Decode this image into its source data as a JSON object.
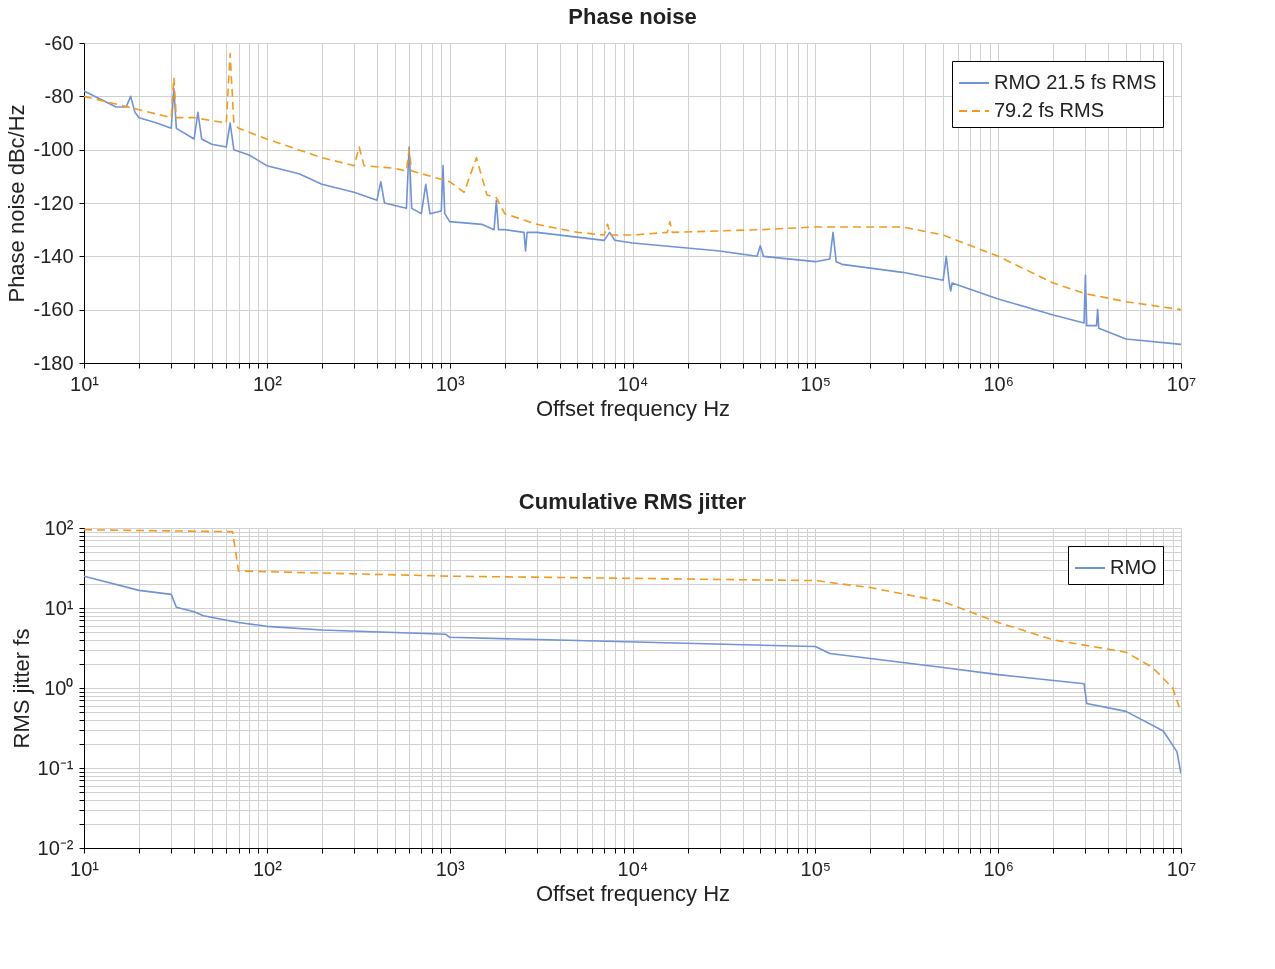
{
  "chart_data": [
    {
      "type": "line",
      "title": "Phase noise",
      "xlabel": "Offset frequency Hz",
      "ylabel": "Phase noise dBc/Hz",
      "log": "x",
      "grid": true,
      "legend": "top right",
      "marker": "none",
      "xlim": [
        10,
        10000000
      ],
      "ylim": [
        -180,
        -60
      ],
      "xticks": [
        {
          "value": 10,
          "label": "10¹"
        },
        {
          "value": 100,
          "label": "10²"
        },
        {
          "value": 1000,
          "label": "10³"
        },
        {
          "value": 10000,
          "label": "10⁴"
        },
        {
          "value": 100000,
          "label": "10⁵"
        },
        {
          "value": 1000000,
          "label": "10⁶"
        },
        {
          "value": 10000000,
          "label": "10⁷"
        }
      ],
      "yticks": [
        -180,
        -160,
        -140,
        -120,
        -100,
        -80,
        -60
      ],
      "series": [
        {
          "name": "RMO 21.5 fs RMS",
          "color": "#7092d6",
          "line_style": "solid",
          "x": [
            10,
            15,
            17,
            18,
            19,
            20,
            25,
            30,
            31,
            32,
            40,
            42,
            44,
            50,
            60,
            63,
            66,
            80,
            100,
            150,
            200,
            300,
            400,
            420,
            440,
            580,
            600,
            620,
            700,
            740,
            780,
            900,
            920,
            940,
            1000,
            1500,
            1750,
            1800,
            1850,
            2000,
            2550,
            2600,
            2650,
            3000,
            7000,
            7500,
            8000,
            10000,
            30000,
            48000,
            50000,
            52000,
            100000,
            120000,
            125000,
            130000,
            140000,
            300000,
            500000,
            520000,
            540000,
            550000,
            560000,
            1000000,
            2000000,
            2950000,
            3000000,
            3050000,
            3450000,
            3500000,
            3550000,
            5000000,
            10000000
          ],
          "values": [
            -78,
            -84,
            -84,
            -80,
            -86,
            -88,
            -90,
            -92,
            -77,
            -92,
            -96,
            -86,
            -96,
            -98,
            -99,
            -90,
            -100,
            -102,
            -106,
            -109,
            -113,
            -116,
            -119,
            -112,
            -120,
            -122,
            -99,
            -122,
            -124,
            -113,
            -124,
            -123,
            -106,
            -124,
            -127,
            -128,
            -130,
            -119,
            -130,
            -130,
            -131,
            -138,
            -131,
            -131,
            -134,
            -131,
            -134,
            -135,
            -138,
            -140,
            -136,
            -140,
            -142,
            -141,
            -131,
            -142,
            -143,
            -146,
            -149,
            -140,
            -150,
            -153,
            -150,
            -156,
            -162,
            -165,
            -147,
            -166,
            -166,
            -160,
            -167,
            -171,
            -173
          ]
        },
        {
          "name": "79.2 fs RMS",
          "color": "#f39a1e",
          "line_style": "dashed",
          "x": [
            10,
            20,
            30,
            31,
            32,
            40,
            60,
            63,
            66,
            70,
            100,
            200,
            300,
            320,
            340,
            500,
            580,
            600,
            620,
            700,
            1000,
            1200,
            1400,
            1600,
            1800,
            2000,
            3000,
            5000,
            7000,
            7300,
            7600,
            10000,
            15500,
            16000,
            16500,
            50000,
            100000,
            200000,
            300000,
            500000,
            1000000,
            2000000,
            3000000,
            5000000,
            10000000
          ],
          "values": [
            -80,
            -85,
            -88,
            -73,
            -88,
            -88,
            -90,
            -64,
            -90,
            -92,
            -96,
            -103,
            -106,
            -99,
            -106,
            -107,
            -108,
            -100,
            -108,
            -109,
            -112,
            -116,
            -103,
            -117,
            -118,
            -124,
            -128,
            -131,
            -132,
            -128,
            -132,
            -132,
            -131,
            -127,
            -131,
            -130,
            -129,
            -129,
            -129,
            -132,
            -140,
            -150,
            -154,
            -157,
            -160
          ]
        }
      ]
    },
    {
      "type": "line",
      "title": "Cumulative RMS jitter",
      "xlabel": "Offset frequency Hz",
      "ylabel": "RMS jitter fs",
      "log": "xy",
      "grid": true,
      "legend": "top right",
      "marker": "none",
      "xlim": [
        10,
        10000000
      ],
      "ylim": [
        0.01,
        100
      ],
      "xticks": [
        {
          "value": 10,
          "label": "10¹"
        },
        {
          "value": 100,
          "label": "10²"
        },
        {
          "value": 1000,
          "label": "10³"
        },
        {
          "value": 10000,
          "label": "10⁴"
        },
        {
          "value": 100000,
          "label": "10⁵"
        },
        {
          "value": 1000000,
          "label": "10⁶"
        },
        {
          "value": 10000000,
          "label": "10⁷"
        }
      ],
      "yticks": [
        {
          "value": 0.01,
          "label": "10⁻²"
        },
        {
          "value": 0.1,
          "label": "10⁻¹"
        },
        {
          "value": 1,
          "label": "10⁰"
        },
        {
          "value": 10,
          "label": "10¹"
        },
        {
          "value": 100,
          "label": "10²"
        }
      ],
      "series": [
        {
          "name": "RMO",
          "color": "#7092d6",
          "line_style": "solid",
          "x": [
            10,
            20,
            30,
            32,
            40,
            45,
            70,
            100,
            200,
            950,
            1000,
            100000,
            120000,
            500000,
            1000000,
            2950000,
            3050000,
            5000000,
            8000000,
            9500000,
            10000000
          ],
          "values": [
            25,
            16.6,
            14.8,
            10.2,
            9,
            8,
            6.6,
            5.9,
            5.3,
            4.7,
            4.3,
            3.3,
            2.7,
            1.8,
            1.47,
            1.13,
            0.64,
            0.51,
            0.29,
            0.16,
            0.085
          ]
        },
        {
          "color": "#f39a1e",
          "line_style": "dashed",
          "x": [
            10,
            65,
            70,
            1000,
            100000,
            200000,
            500000,
            1000000,
            2000000,
            5000000,
            7000000,
            9000000,
            10000000
          ],
          "values": [
            95,
            90,
            29,
            25,
            22,
            18,
            12,
            6.6,
            4,
            2.8,
            1.8,
            1.0,
            0.5
          ]
        }
      ]
    }
  ]
}
